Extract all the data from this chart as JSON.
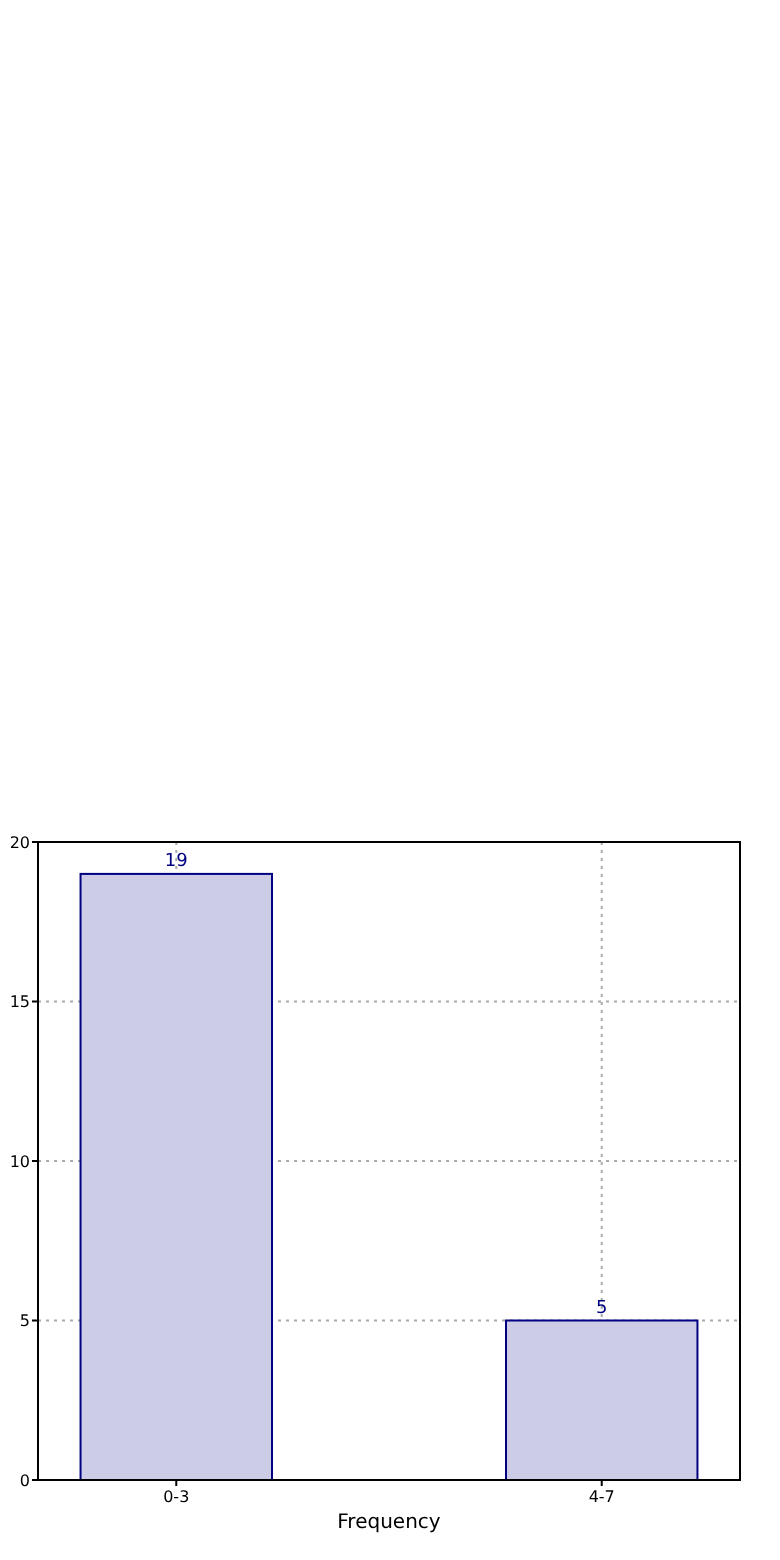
{
  "chart_data": {
    "type": "bar",
    "xlabel": "Frequency",
    "categories": [
      "0-3",
      "4-7"
    ],
    "series": [
      {
        "color": "#cccce6",
        "values": [
          19,
          5
        ]
      }
    ],
    "ylim": [
      0,
      20
    ],
    "yticks": [
      0,
      5,
      10,
      15,
      20
    ],
    "grid": true,
    "data_labels": true
  }
}
